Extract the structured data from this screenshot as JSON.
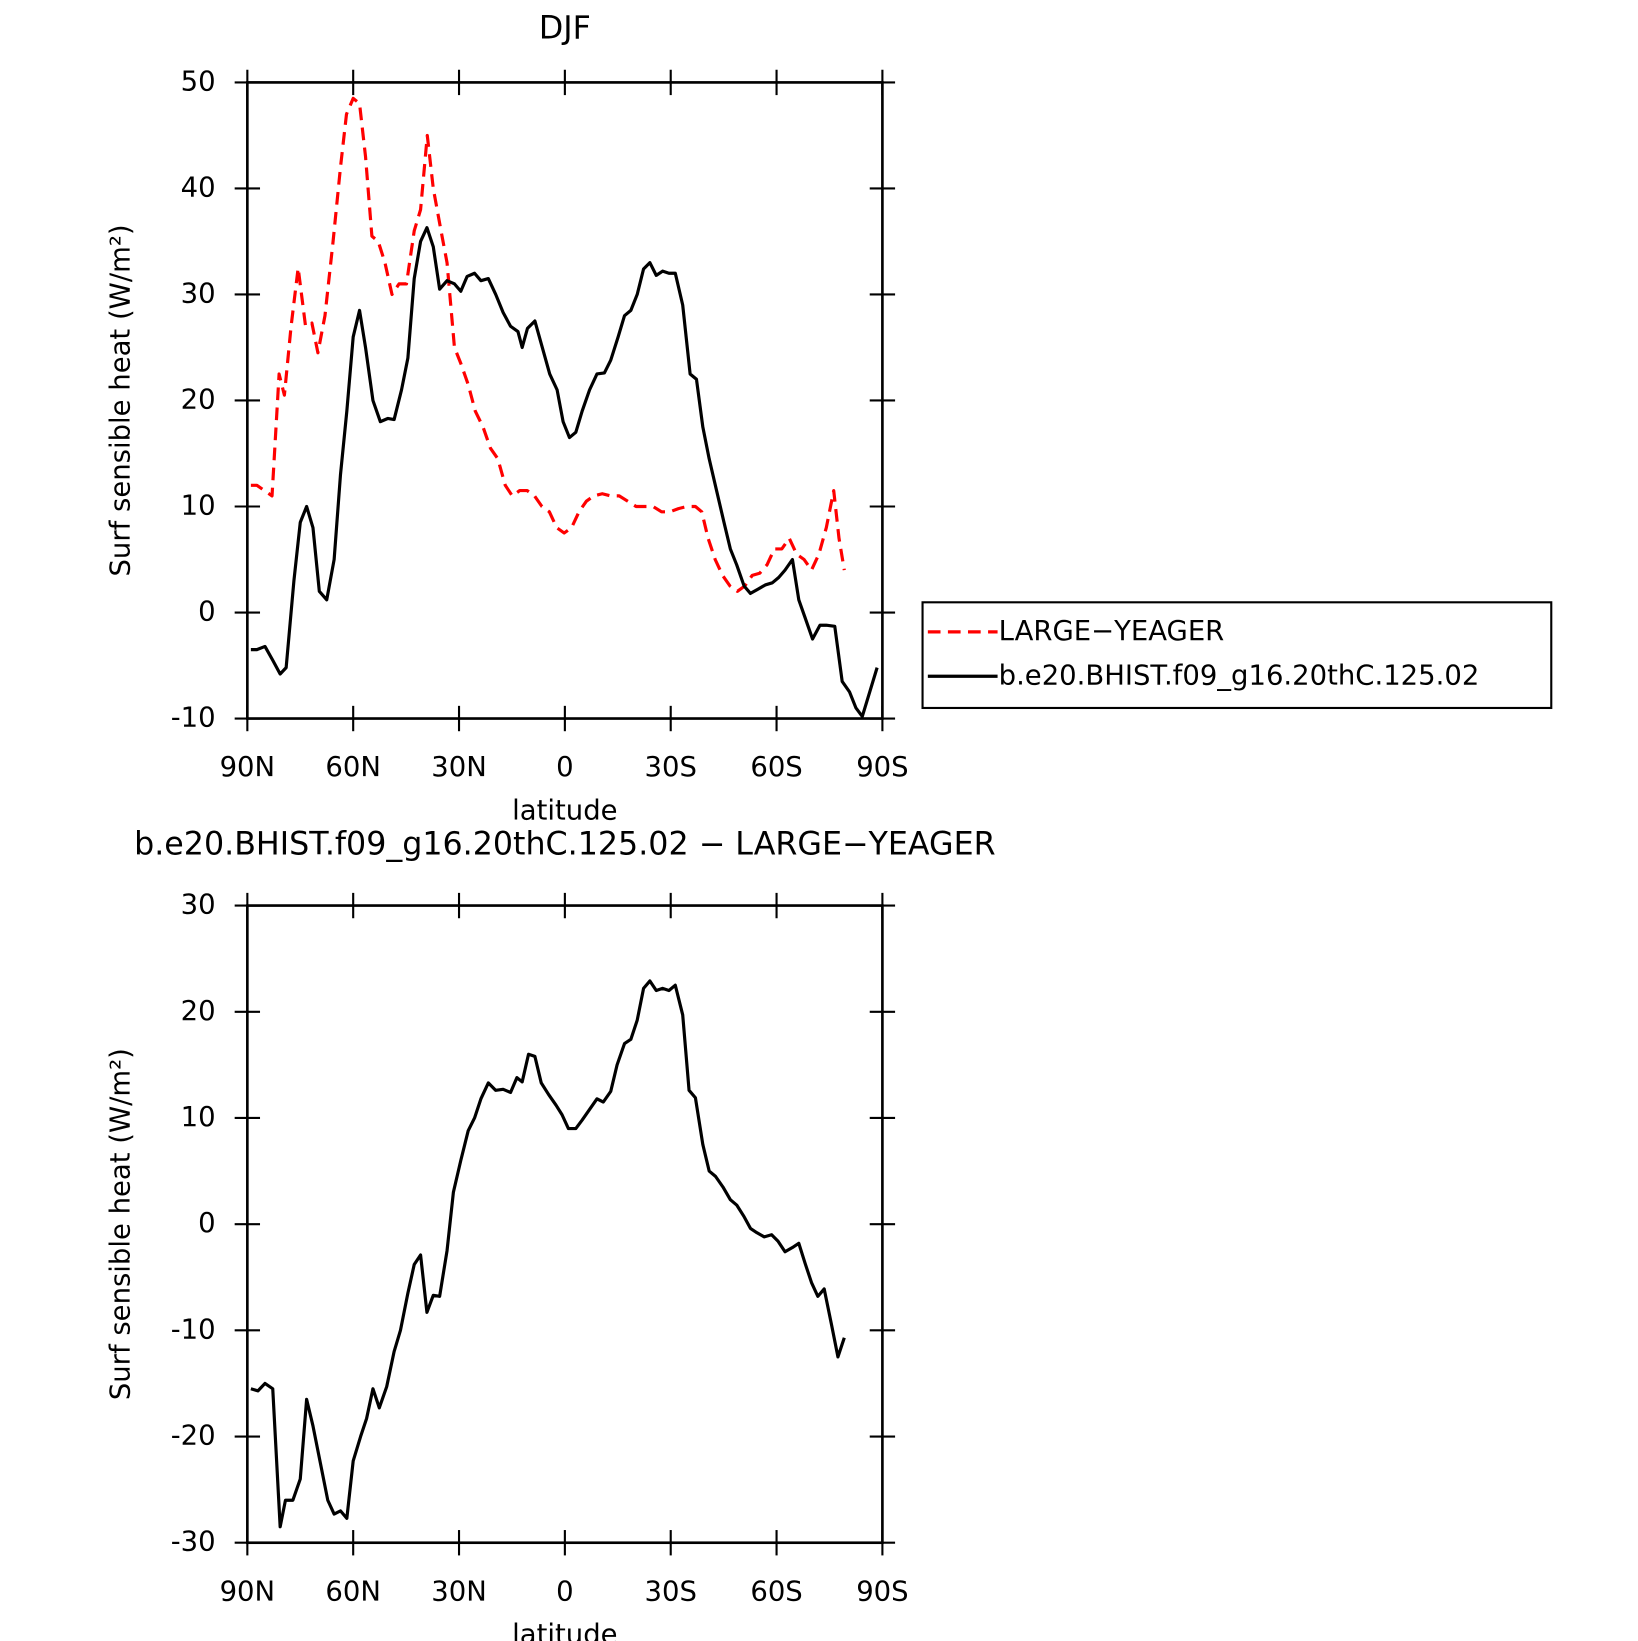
{
  "chart_data": [
    {
      "type": "line",
      "title": "DJF",
      "xlabel": "latitude",
      "ylabel": "Surf sensible heat (W/m²)",
      "xlim": [
        90,
        -90
      ],
      "xticks": [
        {
          "value": 90,
          "label": "90N"
        },
        {
          "value": 60,
          "label": "60N"
        },
        {
          "value": 30,
          "label": "30N"
        },
        0,
        {
          "value": -30,
          "label": "30S"
        },
        {
          "value": -60,
          "label": "60S"
        },
        {
          "value": -90,
          "label": "90S"
        }
      ],
      "ylim": [
        -10,
        50
      ],
      "yticks": [
        -10,
        0,
        10,
        20,
        30,
        40,
        50
      ],
      "legend": "right",
      "series": [
        {
          "name": "LARGE−YEAGER",
          "color": "#ff0000",
          "dash": "dashed",
          "x": [
            89,
            87.3,
            83,
            81,
            79.5,
            77.6,
            75.6,
            73.5,
            71.7,
            70,
            68,
            65.7,
            63.6,
            61.9,
            60,
            58.2,
            56.5,
            54.7,
            52.9,
            51,
            49,
            47,
            44.9,
            42.7,
            40.9,
            39,
            37.3,
            35.1,
            33.4,
            31.3,
            29.5,
            27.4,
            25.4,
            23.2,
            21.1,
            19,
            16.9,
            14.9,
            12.8,
            10.7,
            8.6,
            6.5,
            4.4,
            2.3,
            0.2,
            -1.9,
            -4,
            -6.1,
            -8.2,
            -10.6,
            -13,
            -15.4,
            -17.8,
            -20.2,
            -22.6,
            -25,
            -27.4,
            -29.8,
            -32.2,
            -34.6,
            -37,
            -38.8,
            -40.6,
            -42.6,
            -44.7,
            -46.8,
            -48.9,
            -51,
            -53.1,
            -55.2,
            -57.3,
            -59.4,
            -61.5,
            -63.6,
            -65.7,
            -67.8,
            -69.9,
            -72,
            -74.1,
            -76.2,
            -77.7,
            -79.2
          ],
          "values": [
            12,
            12,
            11,
            22.5,
            20.5,
            27,
            32.5,
            27,
            27.3,
            24.5,
            28,
            35,
            42,
            47,
            48.5,
            48,
            43,
            35.5,
            35,
            33,
            30,
            31,
            31,
            36,
            38,
            45,
            40,
            36,
            33,
            25,
            23.5,
            21.5,
            19,
            17.5,
            15.5,
            14.5,
            12,
            11,
            11.5,
            11.5,
            11,
            10,
            9.5,
            8,
            7.5,
            8,
            9.5,
            10.5,
            11,
            11.2,
            11,
            11,
            10.5,
            10,
            10,
            10,
            9.5,
            9.5,
            9.8,
            10,
            10,
            9.5,
            7,
            5,
            3.5,
            2.5,
            2,
            2.5,
            3.5,
            3.7,
            4.5,
            6,
            6,
            7,
            5.5,
            5,
            4,
            5.5,
            8,
            11.5,
            7,
            4
          ]
        },
        {
          "name": "b.e20.BHIST.f09_g16.20thC.125.02",
          "color": "#000000",
          "dash": "solid",
          "x": [
            89,
            87.3,
            85,
            82.8,
            80.7,
            79,
            76.8,
            75,
            73.2,
            71.4,
            69.6,
            67.5,
            65.4,
            63.6,
            61.8,
            60,
            58.2,
            56.5,
            54.4,
            52.3,
            50.2,
            48.4,
            46.3,
            44.5,
            42.7,
            40.9,
            39.1,
            37.3,
            35.5,
            33.4,
            31.3,
            29.5,
            27.7,
            25.6,
            23.8,
            21.7,
            19.6,
            17.5,
            15.4,
            13.3,
            12.1,
            10.6,
            8.5,
            6.4,
            4.3,
            2.2,
            0.5,
            -1.3,
            -3.1,
            -4.9,
            -7,
            -9.1,
            -11.2,
            -13,
            -15.1,
            -16.9,
            -18.7,
            -20.5,
            -22.3,
            -24.1,
            -25.9,
            -27.7,
            -29.5,
            -31.3,
            -33.4,
            -35.5,
            -37.3,
            -39.1,
            -40.9,
            -43,
            -45.1,
            -46.9,
            -48.7,
            -50.8,
            -52.6,
            -54.7,
            -56.8,
            -58.8,
            -60.6,
            -62.4,
            -64.5,
            -66.3,
            -68.1,
            -70.2,
            -72.3,
            -74.1,
            -76.5,
            -78.6,
            -80.7,
            -82.5,
            -84.3,
            -86.4,
            -88.5
          ],
          "values": [
            -3.5,
            -3.5,
            -3.2,
            -4.5,
            -5.8,
            -5.2,
            3,
            8.5,
            10,
            8,
            2,
            1.2,
            5,
            13,
            19,
            26,
            28.5,
            25,
            20,
            18,
            18.3,
            18.2,
            21,
            24,
            31.5,
            35,
            36.3,
            34.5,
            30.5,
            31.3,
            31,
            30.3,
            31.7,
            32,
            31.3,
            31.5,
            30,
            28.3,
            27,
            26.5,
            25,
            26.8,
            27.5,
            25,
            22.5,
            21,
            18,
            16.5,
            17,
            19,
            21,
            22.5,
            22.6,
            23.8,
            26,
            28,
            28.5,
            30,
            32.4,
            33,
            31.8,
            32.2,
            32,
            32,
            29,
            22.5,
            22,
            17.5,
            14.5,
            11.5,
            8.5,
            6,
            4.5,
            2.5,
            1.8,
            2.2,
            2.6,
            2.8,
            3.3,
            4,
            5,
            1.2,
            -0.5,
            -2.5,
            -1.2,
            -1.2,
            -1.3,
            -6.5,
            -7.5,
            -9,
            -9.8,
            -7.5,
            -5.2
          ]
        }
      ]
    },
    {
      "type": "line",
      "title": "b.e20.BHIST.f09_g16.20thC.125.02 − LARGE−YEAGER",
      "xlabel": "latitude",
      "ylabel": "Surf sensible heat (W/m²)",
      "xlim": [
        90,
        -90
      ],
      "xticks": [
        {
          "value": 90,
          "label": "90N"
        },
        {
          "value": 60,
          "label": "60N"
        },
        {
          "value": 30,
          "label": "30N"
        },
        0,
        {
          "value": -30,
          "label": "30S"
        },
        {
          "value": -60,
          "label": "60S"
        },
        {
          "value": -90,
          "label": "90S"
        }
      ],
      "ylim": [
        -30,
        30
      ],
      "yticks": [
        -30,
        -20,
        -10,
        0,
        10,
        20,
        30
      ],
      "series": [
        {
          "color": "#000000",
          "dash": "solid",
          "x": [
            89,
            87,
            85,
            82.8,
            80.7,
            79.2,
            77.1,
            75,
            73.2,
            71.4,
            69.3,
            67.2,
            65.4,
            63.6,
            61.8,
            60,
            57.9,
            56.2,
            54.4,
            52.6,
            50.5,
            48.4,
            46.6,
            44.5,
            42.7,
            40.9,
            39.1,
            37.3,
            35.5,
            33.4,
            31.6,
            29.5,
            27.4,
            25.6,
            23.8,
            21.7,
            19.6,
            17.5,
            15.4,
            13.6,
            12.1,
            10.3,
            8.5,
            6.7,
            4.6,
            2.5,
            0.8,
            -1,
            -3.1,
            -4.9,
            -7,
            -9.1,
            -10.9,
            -13,
            -14.8,
            -16.9,
            -18.7,
            -20.5,
            -22.3,
            -24.1,
            -25.9,
            -27.7,
            -29.5,
            -31.3,
            -33.4,
            -35.2,
            -37,
            -39.1,
            -40.9,
            -42.7,
            -44.8,
            -46.9,
            -48.7,
            -50.8,
            -52.6,
            -54.4,
            -56.5,
            -58.6,
            -60.4,
            -62.4,
            -64.5,
            -66.3,
            -68.1,
            -69.9,
            -71.7,
            -73.5,
            -75.6,
            -77.4,
            -79.2
          ],
          "values": [
            -15.5,
            -15.7,
            -15,
            -15.5,
            -28.5,
            -26,
            -26,
            -24,
            -16.5,
            -19,
            -22.5,
            -26,
            -27.3,
            -27,
            -27.7,
            -22.3,
            -20,
            -18.3,
            -15.5,
            -17.3,
            -15.3,
            -12,
            -10,
            -6.5,
            -3.8,
            -2.9,
            -8.3,
            -6.7,
            -6.8,
            -2.5,
            3,
            6,
            8.8,
            10,
            11.8,
            13.3,
            12.6,
            12.7,
            12.4,
            13.8,
            13.4,
            16,
            15.8,
            13.3,
            12.2,
            11.2,
            10.3,
            9,
            9,
            9.8,
            10.8,
            11.8,
            11.5,
            12.5,
            15,
            17,
            17.4,
            19.2,
            22.2,
            22.9,
            22,
            22.2,
            22,
            22.5,
            19.7,
            12.6,
            11.9,
            7.5,
            5,
            4.5,
            3.5,
            2.3,
            1.8,
            0.7,
            -0.4,
            -0.8,
            -1.2,
            -1,
            -1.6,
            -2.6,
            -2.2,
            -1.8,
            -3.7,
            -5.5,
            -6.8,
            -6.1,
            -9.5,
            -12.5,
            -10.7
          ]
        }
      ]
    }
  ]
}
